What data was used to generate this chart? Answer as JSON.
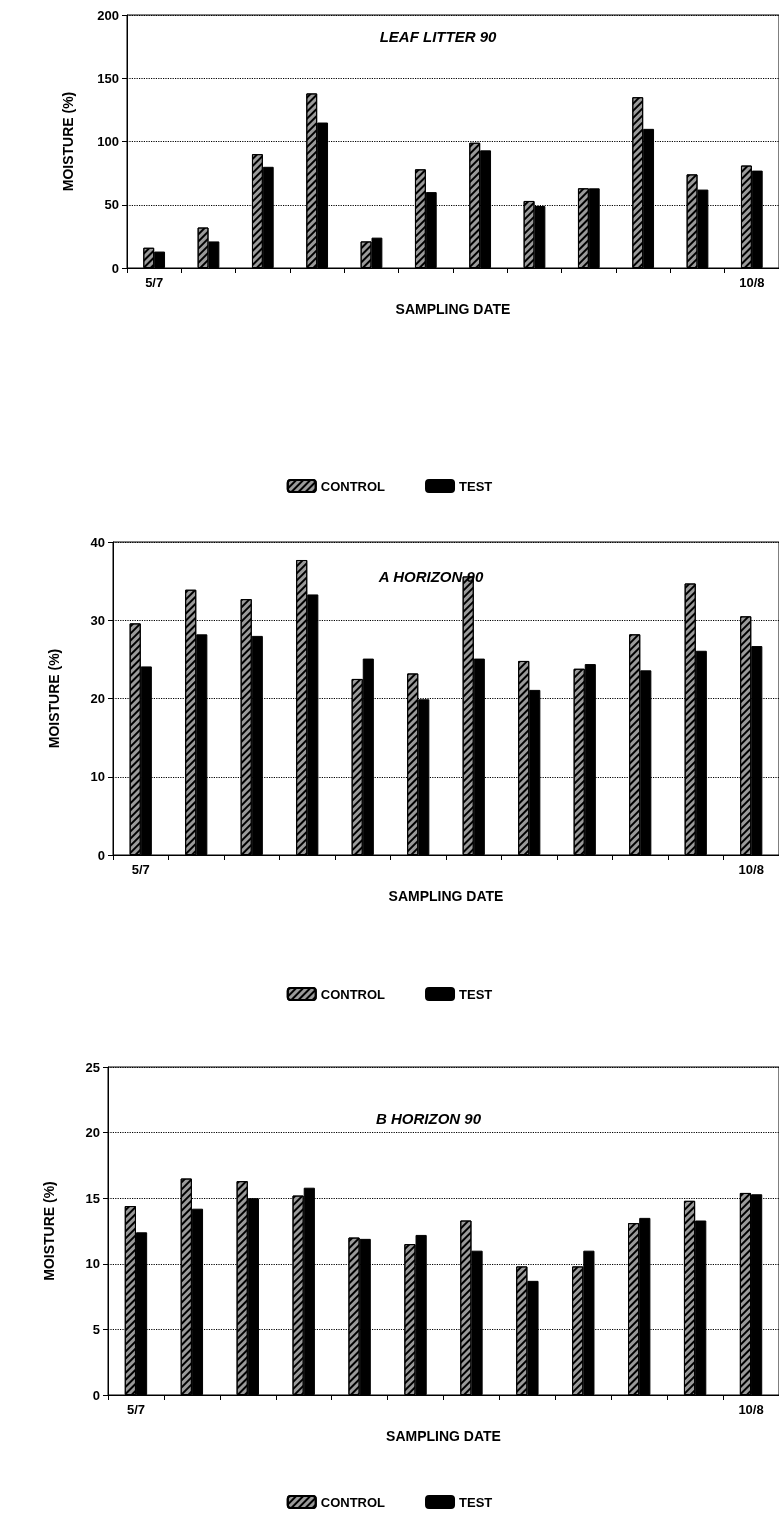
{
  "chart_data": [
    {
      "type": "bar",
      "title": "LEAF LITTER 90",
      "xlabel": "SAMPLING DATE",
      "ylabel": "MOISTURE (%)",
      "categories": [
        "5/7",
        null,
        null,
        null,
        null,
        null,
        null,
        null,
        null,
        null,
        null,
        "10/8"
      ],
      "series": [
        {
          "name": "CONTROL",
          "color": "#9a9a9a",
          "values": [
            16,
            32,
            90,
            138,
            21,
            78,
            99,
            53,
            63,
            135,
            74,
            81
          ]
        },
        {
          "name": "TEST",
          "color": "#000000",
          "values": [
            13,
            21,
            80,
            115,
            24,
            60,
            93,
            49,
            63,
            110,
            62,
            77
          ]
        }
      ],
      "ylim": [
        0,
        200
      ],
      "yticks": [
        0,
        50,
        100,
        150,
        200
      ],
      "grid": "y",
      "legend": "bottom"
    },
    {
      "type": "bar",
      "title": "A HORIZON 90",
      "xlabel": "SAMPLING DATE",
      "ylabel": "MOISTURE (%)",
      "categories": [
        "5/7",
        null,
        null,
        null,
        null,
        null,
        null,
        null,
        null,
        null,
        null,
        "10/8"
      ],
      "series": [
        {
          "name": "CONTROL",
          "color": "#9a9a9a",
          "values": [
            29.6,
            33.9,
            32.7,
            37.7,
            22.5,
            23.2,
            35.6,
            24.8,
            23.8,
            28.2,
            34.7,
            30.5
          ]
        },
        {
          "name": "TEST",
          "color": "#000000",
          "values": [
            24.1,
            28.2,
            28.0,
            33.3,
            25.1,
            19.9,
            25.1,
            21.1,
            24.4,
            23.6,
            26.1,
            26.7
          ]
        }
      ],
      "ylim": [
        0,
        40
      ],
      "yticks": [
        0,
        10,
        20,
        30,
        40
      ],
      "grid": "y",
      "legend": "bottom"
    },
    {
      "type": "bar",
      "title": "B HORIZON 90",
      "xlabel": "SAMPLING DATE",
      "ylabel": "MOISTURE (%)",
      "categories": [
        "5/7",
        null,
        null,
        null,
        null,
        null,
        null,
        null,
        null,
        null,
        null,
        "10/8"
      ],
      "series": [
        {
          "name": "CONTROL",
          "color": "#9a9a9a",
          "values": [
            14.4,
            16.5,
            16.3,
            15.2,
            12.0,
            11.5,
            13.3,
            9.8,
            9.8,
            13.1,
            14.8,
            15.4
          ]
        },
        {
          "name": "TEST",
          "color": "#000000",
          "values": [
            12.4,
            14.2,
            15.0,
            15.8,
            11.9,
            12.2,
            11.0,
            8.7,
            11.0,
            13.5,
            13.3,
            15.3
          ]
        }
      ],
      "ylim": [
        0,
        25
      ],
      "yticks": [
        0,
        5,
        10,
        15,
        20,
        25
      ],
      "grid": "y",
      "legend": "bottom"
    }
  ]
}
